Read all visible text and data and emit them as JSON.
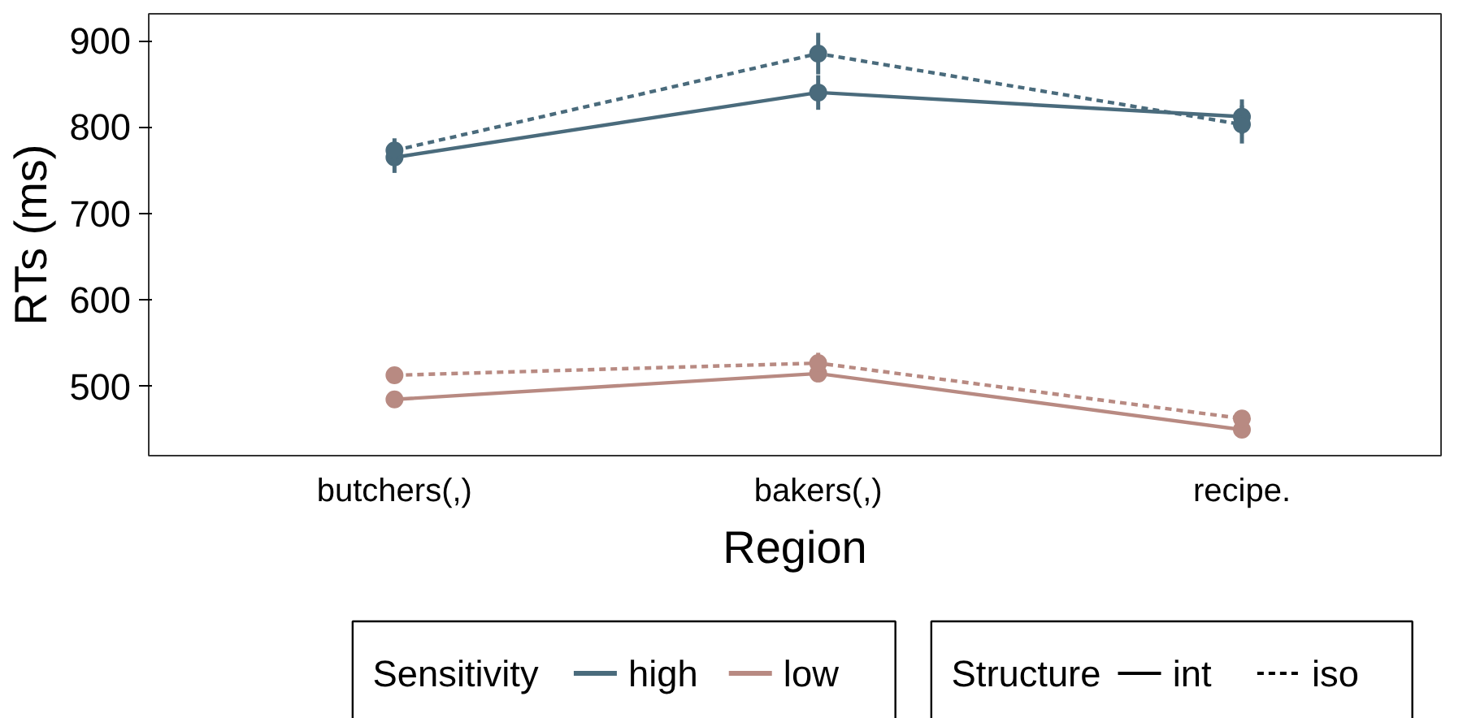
{
  "chart_data": {
    "type": "line",
    "xlabel": "Region",
    "ylabel": "RTs (ms)",
    "categories": [
      "butchers(,)",
      "bakers(,)",
      "recipe."
    ],
    "ylim": [
      420,
      931
    ],
    "yticks": [
      500,
      600,
      700,
      800,
      900
    ],
    "grid": false,
    "marker": "circle",
    "legend": "bottom",
    "legend_title": "Sensitivity",
    "annotations": [
      "Structure",
      "int",
      "iso"
    ],
    "series": [
      {
        "name": "high",
        "color": "#4a6b7c",
        "line_style": "solid",
        "values": [
          765,
          840,
          812
        ],
        "errors": [
          18,
          20,
          20
        ]
      },
      {
        "color": "#4a6b7c",
        "line_style": "dashed",
        "values": [
          773,
          885,
          803
        ],
        "errors": [
          14,
          24,
          22
        ]
      },
      {
        "name": "low",
        "color": "#b88a82",
        "line_style": "solid",
        "values": [
          485,
          515,
          450
        ],
        "errors": [
          6,
          10,
          5
        ]
      },
      {
        "color": "#b88a82",
        "line_style": "dashed",
        "values": [
          513,
          527,
          463
        ],
        "errors": [
          9,
          12,
          5
        ]
      }
    ]
  }
}
